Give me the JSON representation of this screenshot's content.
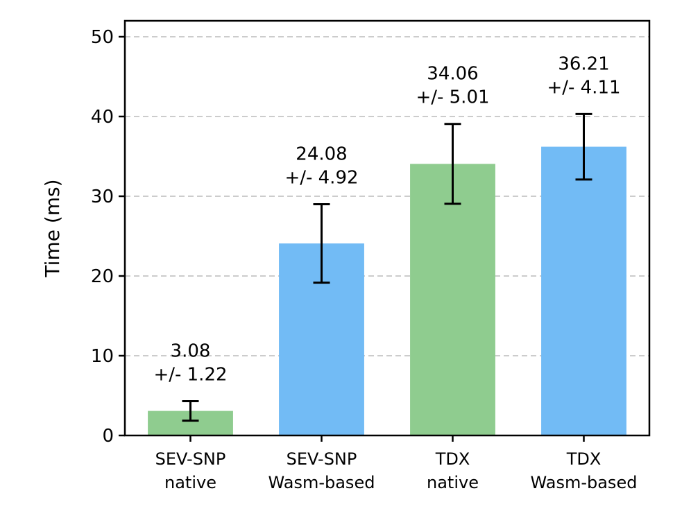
{
  "chart_data": {
    "type": "bar",
    "title": "",
    "xlabel": "",
    "ylabel": "Time (ms)",
    "ylim": [
      0,
      52
    ],
    "yticks": [
      0,
      10,
      20,
      30,
      40,
      50
    ],
    "grid": "horizontal dashed",
    "categories": [
      [
        "SEV-SNP",
        "native"
      ],
      [
        "SEV-SNP",
        "Wasm-based"
      ],
      [
        "TDX",
        "native"
      ],
      [
        "TDX",
        "Wasm-based"
      ]
    ],
    "values": [
      3.08,
      24.08,
      34.06,
      36.21
    ],
    "errors": [
      1.22,
      4.92,
      5.01,
      4.11
    ],
    "labels": [
      [
        "3.08",
        "+/- 1.22"
      ],
      [
        "24.08",
        "+/- 4.92"
      ],
      [
        "34.06",
        "+/- 5.01"
      ],
      [
        "36.21",
        "+/- 4.11"
      ]
    ],
    "colors": [
      "#8fcc8f",
      "#72bbf5",
      "#8fcc8f",
      "#72bbf5"
    ]
  }
}
